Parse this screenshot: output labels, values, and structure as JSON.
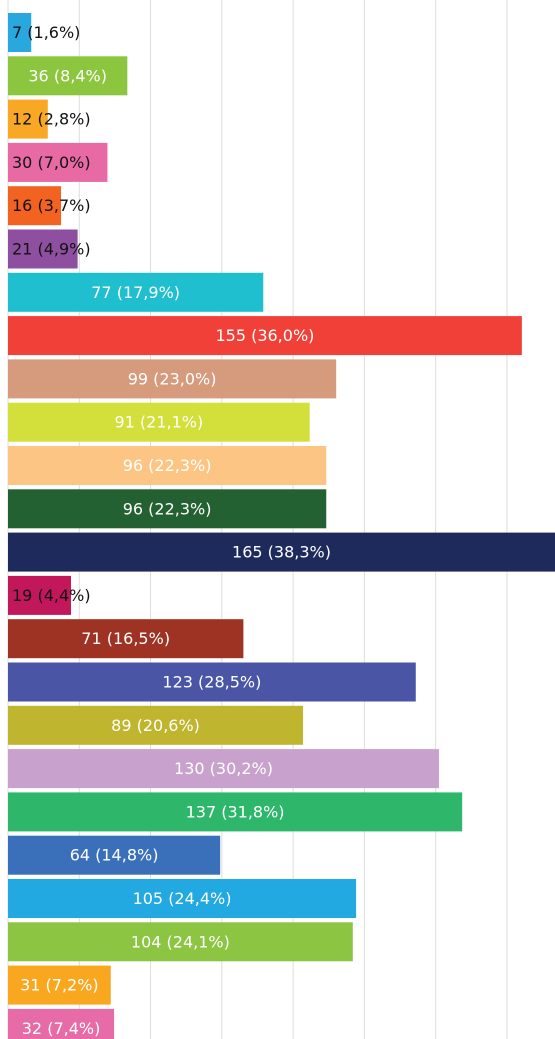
{
  "chart_data": {
    "type": "barh",
    "values": [
      7,
      36,
      12,
      30,
      16,
      21,
      77,
      155,
      99,
      91,
      96,
      96,
      165,
      19,
      71,
      123,
      89,
      130,
      137,
      64,
      105,
      104,
      31,
      32
    ],
    "value_labels": [
      "7 (1,6%)",
      "36 (8,4%)",
      "12 (2,8%)",
      "30 (7,0%)",
      "16 (3,7%)",
      "21 (4,9%)",
      "77 (17,9%)",
      "155 (36,0%)",
      "99 (23,0%)",
      "91 (21,1%)",
      "96 (22,3%)",
      "96 (22,3%)",
      "165 (38,3%)",
      "19 (4,4%)",
      "71 (16,5%)",
      "123 (28,5%)",
      "89 (20,6%)",
      "130 (30,2%)",
      "137 (31,8%)",
      "64 (14,8%)",
      "105 (24,4%)",
      "104 (24,1%)",
      "31 (7,2%)",
      "32 (7,4%)"
    ],
    "colors": [
      "#29a8e0",
      "#8cc63f",
      "#f9a825",
      "#e86aa5",
      "#f26322",
      "#8e4fa0",
      "#1fbfd0",
      "#f04037",
      "#d69b7d",
      "#d3df3a",
      "#fdc583",
      "#246132",
      "#1f2a5c",
      "#c2185b",
      "#9e3223",
      "#4a55a5",
      "#c0b52e",
      "#c8a2cc",
      "#2eb66a",
      "#3a6fba",
      "#23a9e1",
      "#8bc541",
      "#f9a71e",
      "#e76ba6"
    ],
    "xlim": [
      0,
      165
    ],
    "xticks": [
      0,
      21.5,
      43,
      64.5,
      86,
      107.5,
      129,
      150.5
    ],
    "grid": true
  }
}
